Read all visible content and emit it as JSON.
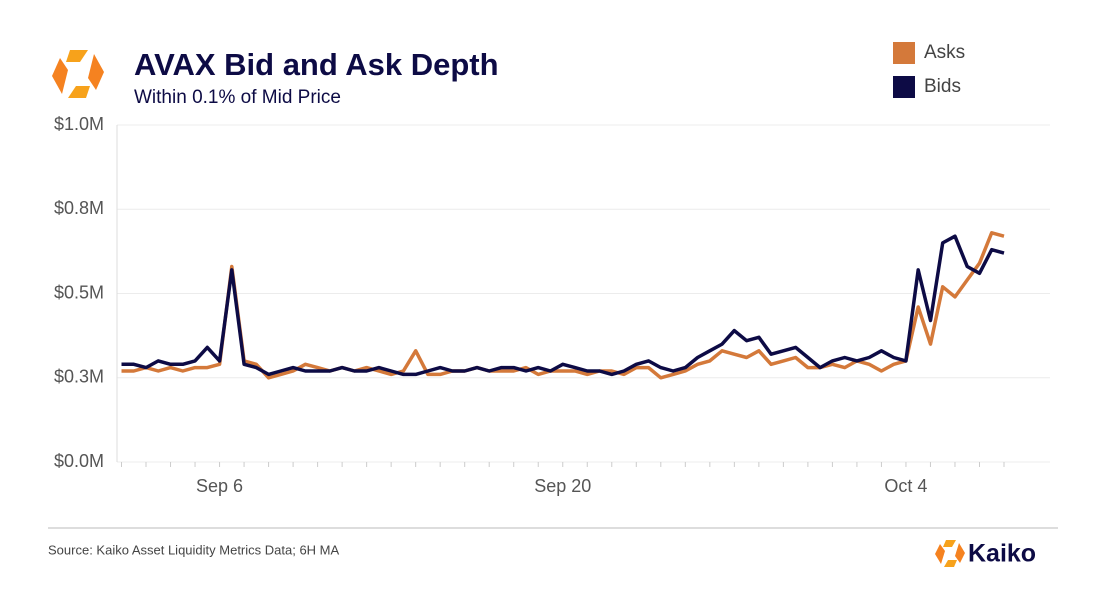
{
  "chart_data": {
    "type": "line",
    "title": "AVAX Bid and Ask Depth",
    "subtitle": "Within 0.1% of Mid Price",
    "source": "Source: Kaiko Asset Liquidity Metrics Data; 6H MA",
    "brand": "Kaiko",
    "categories": [
      null,
      null,
      null,
      null,
      null,
      null,
      null,
      null,
      "Sep 6",
      null,
      null,
      null,
      null,
      null,
      null,
      null,
      null,
      null,
      null,
      null,
      null,
      null,
      null,
      null,
      null,
      null,
      null,
      null,
      null,
      null,
      null,
      null,
      null,
      null,
      null,
      null,
      "Sep 20",
      null,
      null,
      null,
      null,
      null,
      null,
      null,
      null,
      null,
      null,
      null,
      null,
      null,
      null,
      null,
      null,
      null,
      null,
      null,
      null,
      null,
      null,
      null,
      null,
      null,
      null,
      null,
      "Oct 4",
      null,
      null,
      null,
      null,
      null,
      null,
      null,
      null
    ],
    "series": [
      {
        "name": "Asks",
        "color": "#d4793a",
        "values": [
          0.27,
          0.27,
          0.28,
          0.27,
          0.28,
          0.27,
          0.28,
          0.28,
          0.29,
          0.58,
          0.3,
          0.29,
          0.25,
          0.26,
          0.27,
          0.29,
          0.28,
          0.27,
          0.28,
          0.27,
          0.28,
          0.27,
          0.26,
          0.27,
          0.33,
          0.26,
          0.26,
          0.27,
          0.27,
          0.28,
          0.27,
          0.27,
          0.27,
          0.28,
          0.26,
          0.27,
          0.27,
          0.27,
          0.26,
          0.27,
          0.27,
          0.26,
          0.28,
          0.28,
          0.25,
          0.26,
          0.27,
          0.29,
          0.3,
          0.33,
          0.32,
          0.31,
          0.33,
          0.29,
          0.3,
          0.31,
          0.28,
          0.28,
          0.29,
          0.28,
          0.3,
          0.29,
          0.27,
          0.29,
          0.3,
          0.46,
          0.35,
          0.52,
          0.49,
          0.54,
          0.59,
          0.68,
          0.67
        ]
      },
      {
        "name": "Bids",
        "color": "#0d0b45",
        "values": [
          0.29,
          0.29,
          0.28,
          0.3,
          0.29,
          0.29,
          0.3,
          0.34,
          0.3,
          0.57,
          0.29,
          0.28,
          0.26,
          0.27,
          0.28,
          0.27,
          0.27,
          0.27,
          0.28,
          0.27,
          0.27,
          0.28,
          0.27,
          0.26,
          0.26,
          0.27,
          0.28,
          0.27,
          0.27,
          0.28,
          0.27,
          0.28,
          0.28,
          0.27,
          0.28,
          0.27,
          0.29,
          0.28,
          0.27,
          0.27,
          0.26,
          0.27,
          0.29,
          0.3,
          0.28,
          0.27,
          0.28,
          0.31,
          0.33,
          0.35,
          0.39,
          0.36,
          0.37,
          0.32,
          0.33,
          0.34,
          0.31,
          0.28,
          0.3,
          0.31,
          0.3,
          0.31,
          0.33,
          0.31,
          0.3,
          0.57,
          0.42,
          0.65,
          0.67,
          0.58,
          0.56,
          0.63,
          0.62
        ]
      }
    ],
    "ylim": [
      0,
      1
    ],
    "yticks": [
      {
        "value": 0,
        "label": "$0.0M"
      },
      {
        "value": 0.25,
        "label": "$0.3M"
      },
      {
        "value": 0.5,
        "label": "$0.5M"
      },
      {
        "value": 0.75,
        "label": "$0.8M"
      },
      {
        "value": 1,
        "label": "$1.0M"
      }
    ],
    "grid": true
  }
}
